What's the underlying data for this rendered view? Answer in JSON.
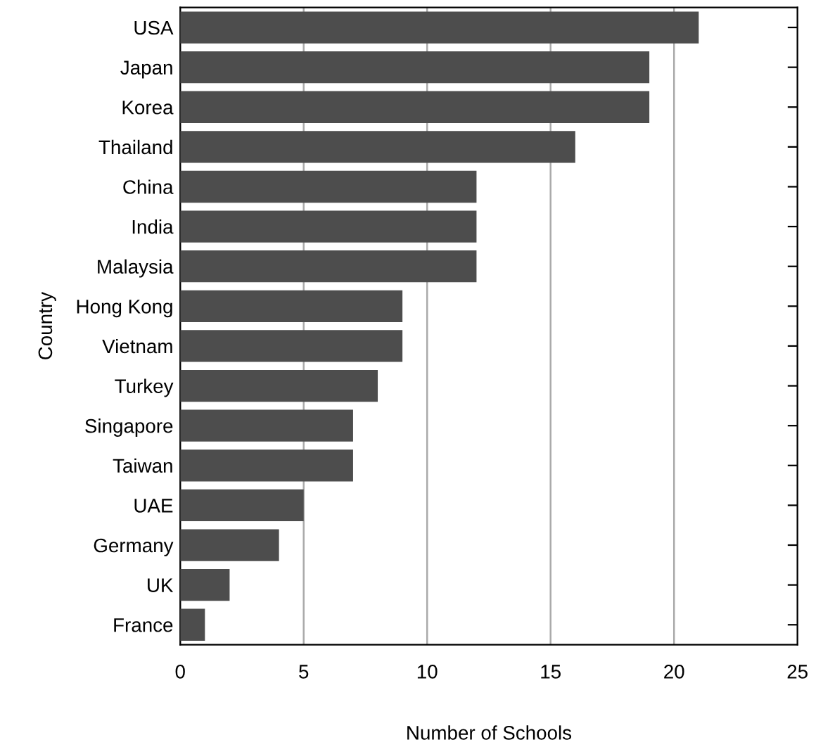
{
  "chart_data": {
    "type": "bar",
    "orientation": "horizontal",
    "categories": [
      "USA",
      "Japan",
      "Korea",
      "Thailand",
      "China",
      "India",
      "Malaysia",
      "Hong Kong",
      "Vietnam",
      "Turkey",
      "Singapore",
      "Taiwan",
      "UAE",
      "Germany",
      "UK",
      "France"
    ],
    "values": [
      21,
      19,
      19,
      16,
      12,
      12,
      12,
      9,
      9,
      8,
      7,
      7,
      5,
      4,
      2,
      1
    ],
    "color": "#4d4d4d",
    "xlim": [
      0,
      25
    ],
    "xticks": [
      0,
      5,
      10,
      15,
      20,
      25
    ],
    "xlabel": "Number of Schools",
    "ylabel": "Country",
    "grid": "x",
    "legend": false
  }
}
